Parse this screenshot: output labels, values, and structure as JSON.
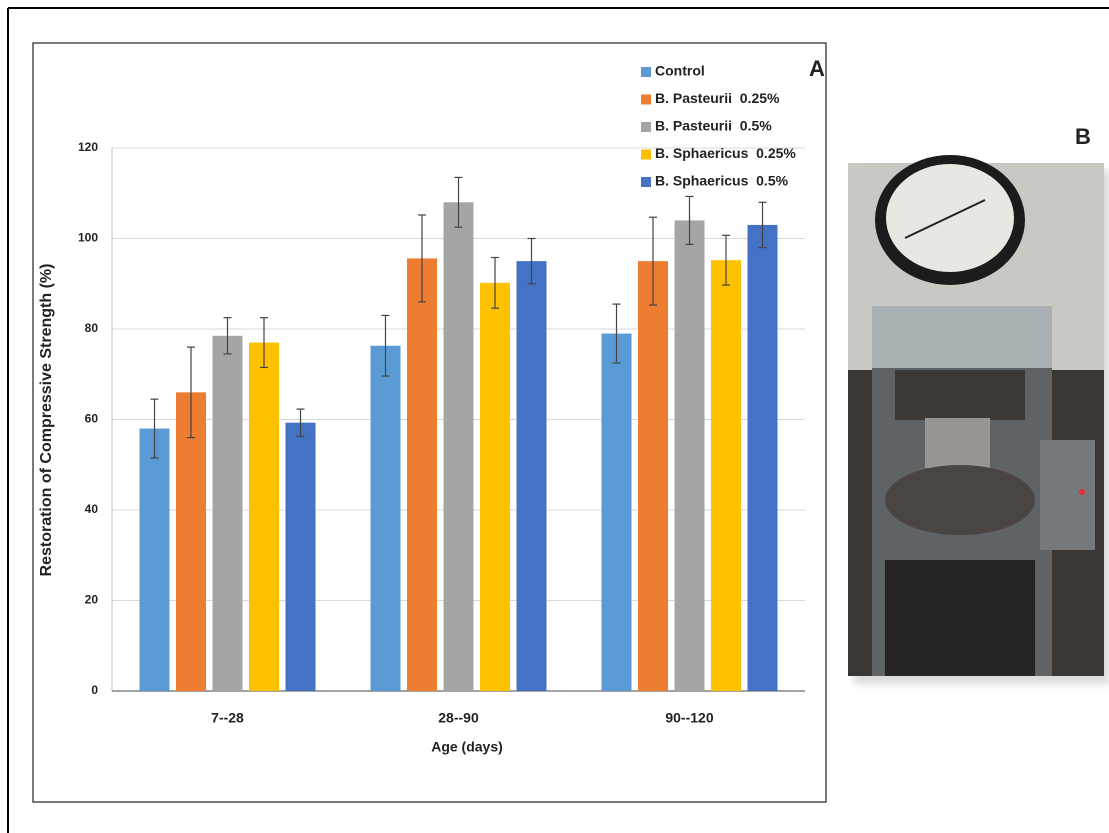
{
  "chart_data": {
    "type": "bar",
    "x_label": "Age (days)",
    "y_label": "Restoration of Compressive Strength (%)",
    "categories": [
      "7--28",
      "28--90",
      "90--120"
    ],
    "series": [
      {
        "name": "Control",
        "color": "#5b9bd5",
        "values": [
          58,
          76.3,
          79
        ],
        "errors": [
          6.5,
          6.7,
          6.5
        ]
      },
      {
        "name": "B. Pasteurii  0.25%",
        "color": "#ed7d31",
        "values": [
          66,
          95.6,
          95
        ],
        "errors": [
          10,
          9.6,
          9.7
        ]
      },
      {
        "name": "B. Pasteurii  0.5%",
        "color": "#a5a5a5",
        "values": [
          78.5,
          108,
          104
        ],
        "errors": [
          4,
          5.5,
          5.3
        ]
      },
      {
        "name": "B. Sphaericus  0.25%",
        "color": "#ffc000",
        "values": [
          77,
          90.2,
          95.2
        ],
        "errors": [
          5.5,
          5.6,
          5.5
        ]
      },
      {
        "name": "B. Sphaericus  0.5%",
        "color": "#4472c4",
        "values": [
          59.3,
          95,
          103
        ],
        "errors": [
          3,
          5,
          5
        ]
      }
    ],
    "ylim": [
      0,
      120
    ],
    "yticks": [
      0,
      20,
      40,
      60,
      80,
      100,
      120
    ],
    "grid": true,
    "legend": "upper right",
    "annotations": [
      "A",
      "B"
    ]
  }
}
